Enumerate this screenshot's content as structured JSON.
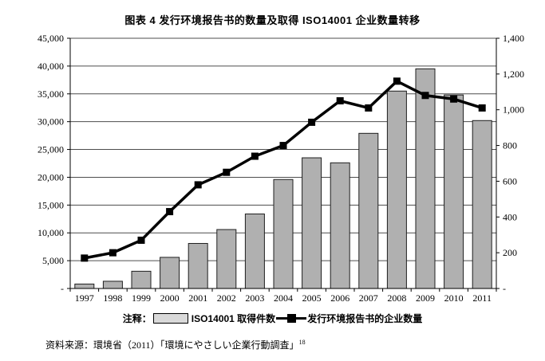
{
  "title": "图表 4  发行环境报告书的数量及取得 ISO14001 企业数量转移",
  "chart_data": {
    "type": "bar",
    "subtype": "bar-line combo, dual axis",
    "categories": [
      "1997",
      "1998",
      "1999",
      "2000",
      "2001",
      "2002",
      "2003",
      "2004",
      "2005",
      "2006",
      "2007",
      "2008",
      "2009",
      "2010",
      "2011"
    ],
    "series": [
      {
        "name": "ISO14001 取得件数",
        "type": "bar",
        "axis": "left",
        "values": [
          800,
          1300,
          3100,
          5600,
          8100,
          10600,
          13400,
          19600,
          23500,
          22600,
          27900,
          35500,
          39500,
          34800,
          30200
        ]
      },
      {
        "name": "发行环境报告书的企业数量",
        "type": "line",
        "axis": "right",
        "marker": "square",
        "values": [
          170,
          200,
          270,
          430,
          580,
          650,
          740,
          800,
          930,
          1050,
          1010,
          1160,
          1080,
          1060,
          1010
        ]
      }
    ],
    "left_axis": {
      "min": 0,
      "max": 45000,
      "step": 5000,
      "tick_labels": [
        "-",
        "5,000",
        "10,000",
        "15,000",
        "20,000",
        "25,000",
        "30,000",
        "35,000",
        "40,000",
        "45,000"
      ]
    },
    "right_axis": {
      "min": 0,
      "max": 1400,
      "step": 200,
      "tick_labels": [
        "-",
        "200",
        "400",
        "600",
        "800",
        "1,000",
        "1,200",
        "1,400"
      ]
    },
    "grid": true,
    "legend_position": "bottom"
  },
  "legend": {
    "prefix": "注释：",
    "items": [
      {
        "label": "ISO14001 取得件数",
        "swatch": "gray-bar"
      },
      {
        "label": "发行环境报告书的企业数量",
        "swatch": "black-line-square-marker"
      }
    ]
  },
  "source": {
    "text": "资料来源：環境省（2011）「環境にやさしい企業行動調査」",
    "superscript": "18"
  },
  "colors": {
    "bar_fill": "#b0b0b0",
    "bar_border": "#1f1f1f",
    "line": "#000000",
    "grid": "#4d4d4d",
    "axis": "#000000",
    "legend_swatch": "#d9d9d9",
    "background": "#ffffff"
  }
}
